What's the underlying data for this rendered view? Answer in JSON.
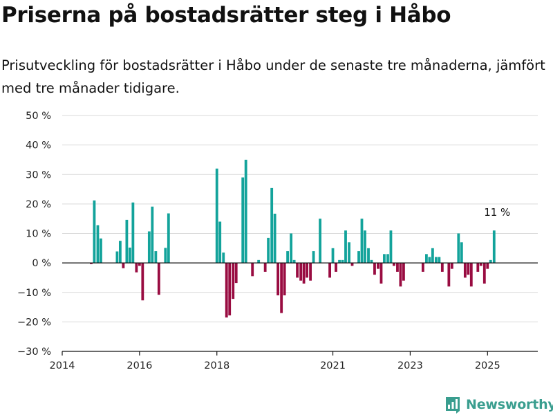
{
  "header": {
    "title": "Priserna på bostadsrätter steg i Håbo",
    "subtitle": "Prisutveckling för bostadsrätter i Håbo under de senaste tre månaderna, jämfört med tre månader tidigare."
  },
  "brand": {
    "name": "Newsworthy",
    "icon": "bar-chart-logo-icon",
    "color": "#3a9e8f"
  },
  "colors": {
    "positive": "#13a39b",
    "negative": "#990c41",
    "grid": "#d9d9d9",
    "axis": "#111111"
  },
  "chart_data": {
    "type": "bar",
    "title": "",
    "xlabel": "",
    "ylabel": "",
    "ylim": [
      -30,
      50
    ],
    "yticks": [
      -30,
      -20,
      -10,
      0,
      10,
      20,
      30,
      40,
      50
    ],
    "ytick_labels": [
      "−30 %",
      "−20 %",
      "−10 %",
      "0 %",
      "10 %",
      "20 %",
      "30 %",
      "40 %",
      "50 %"
    ],
    "xlim": [
      2014.0,
      2026.3
    ],
    "xticks": [
      2014,
      2016,
      2018,
      2021,
      2023,
      2025
    ],
    "xtick_labels": [
      "2014",
      "2016",
      "2018",
      "2021",
      "2023",
      "2025"
    ],
    "grid": "horizontal",
    "annotation": {
      "text": "11 %",
      "x": 2025.25,
      "y": 11
    },
    "series": [
      {
        "values": [
          {
            "x": 2014.75,
            "y": -0.4
          },
          {
            "x": 2014.83,
            "y": 21.2
          },
          {
            "x": 2014.92,
            "y": 12.8
          },
          {
            "x": 2015.0,
            "y": 8.3
          },
          {
            "x": 2015.42,
            "y": 3.9
          },
          {
            "x": 2015.5,
            "y": 7.5
          },
          {
            "x": 2015.58,
            "y": -1.8
          },
          {
            "x": 2015.67,
            "y": 14.6
          },
          {
            "x": 2015.75,
            "y": 5.2
          },
          {
            "x": 2015.83,
            "y": 20.5
          },
          {
            "x": 2015.92,
            "y": -3.2
          },
          {
            "x": 2016.0,
            "y": -1.0
          },
          {
            "x": 2016.08,
            "y": -12.7
          },
          {
            "x": 2016.25,
            "y": 10.7
          },
          {
            "x": 2016.33,
            "y": 19.1
          },
          {
            "x": 2016.42,
            "y": 4.0
          },
          {
            "x": 2016.5,
            "y": -10.8
          },
          {
            "x": 2016.67,
            "y": 5.1
          },
          {
            "x": 2016.75,
            "y": 16.8
          },
          {
            "x": 2018.0,
            "y": 32.0
          },
          {
            "x": 2018.08,
            "y": 14.0
          },
          {
            "x": 2018.17,
            "y": 3.5
          },
          {
            "x": 2018.25,
            "y": -18.5
          },
          {
            "x": 2018.33,
            "y": -17.8
          },
          {
            "x": 2018.42,
            "y": -12.2
          },
          {
            "x": 2018.5,
            "y": -6.8
          },
          {
            "x": 2018.67,
            "y": 29.0
          },
          {
            "x": 2018.75,
            "y": 35.0
          },
          {
            "x": 2018.92,
            "y": -4.5
          },
          {
            "x": 2019.08,
            "y": 1.0
          },
          {
            "x": 2019.25,
            "y": -3.0
          },
          {
            "x": 2019.33,
            "y": 8.5
          },
          {
            "x": 2019.42,
            "y": 25.4
          },
          {
            "x": 2019.5,
            "y": 16.7
          },
          {
            "x": 2019.58,
            "y": -11.0
          },
          {
            "x": 2019.67,
            "y": -17.0
          },
          {
            "x": 2019.75,
            "y": -11.0
          },
          {
            "x": 2019.83,
            "y": 4.0
          },
          {
            "x": 2019.92,
            "y": 10.0
          },
          {
            "x": 2020.0,
            "y": 1.0
          },
          {
            "x": 2020.08,
            "y": -5.0
          },
          {
            "x": 2020.17,
            "y": -6.0
          },
          {
            "x": 2020.25,
            "y": -7.0
          },
          {
            "x": 2020.33,
            "y": -5.0
          },
          {
            "x": 2020.42,
            "y": -6.0
          },
          {
            "x": 2020.5,
            "y": 4.0
          },
          {
            "x": 2020.67,
            "y": 15.0
          },
          {
            "x": 2020.92,
            "y": -5.0
          },
          {
            "x": 2021.0,
            "y": 5.0
          },
          {
            "x": 2021.08,
            "y": -3.0
          },
          {
            "x": 2021.17,
            "y": 1.0
          },
          {
            "x": 2021.25,
            "y": 1.0
          },
          {
            "x": 2021.33,
            "y": 11.0
          },
          {
            "x": 2021.42,
            "y": 7.0
          },
          {
            "x": 2021.5,
            "y": -1.0
          },
          {
            "x": 2021.67,
            "y": 4.0
          },
          {
            "x": 2021.75,
            "y": 15.0
          },
          {
            "x": 2021.83,
            "y": 11.0
          },
          {
            "x": 2021.92,
            "y": 5.0
          },
          {
            "x": 2022.0,
            "y": 1.0
          },
          {
            "x": 2022.08,
            "y": -4.0
          },
          {
            "x": 2022.17,
            "y": -2.0
          },
          {
            "x": 2022.25,
            "y": -7.0
          },
          {
            "x": 2022.33,
            "y": 3.0
          },
          {
            "x": 2022.42,
            "y": 3.0
          },
          {
            "x": 2022.5,
            "y": 11.0
          },
          {
            "x": 2022.58,
            "y": -1.0
          },
          {
            "x": 2022.67,
            "y": -3.0
          },
          {
            "x": 2022.75,
            "y": -8.0
          },
          {
            "x": 2022.83,
            "y": -6.0
          },
          {
            "x": 2023.33,
            "y": -3.0
          },
          {
            "x": 2023.42,
            "y": 3.0
          },
          {
            "x": 2023.5,
            "y": 2.0
          },
          {
            "x": 2023.58,
            "y": 5.0
          },
          {
            "x": 2023.67,
            "y": 2.0
          },
          {
            "x": 2023.75,
            "y": 2.0
          },
          {
            "x": 2023.83,
            "y": -3.0
          },
          {
            "x": 2024.0,
            "y": -8.0
          },
          {
            "x": 2024.08,
            "y": -2.0
          },
          {
            "x": 2024.25,
            "y": 10.0
          },
          {
            "x": 2024.33,
            "y": 7.0
          },
          {
            "x": 2024.42,
            "y": -5.0
          },
          {
            "x": 2024.5,
            "y": -4.0
          },
          {
            "x": 2024.58,
            "y": -8.0
          },
          {
            "x": 2024.75,
            "y": -3.0
          },
          {
            "x": 2024.83,
            "y": -1.0
          },
          {
            "x": 2024.92,
            "y": -7.0
          },
          {
            "x": 2025.0,
            "y": -2.0
          },
          {
            "x": 2025.08,
            "y": 1.0
          },
          {
            "x": 2025.17,
            "y": 11.0
          }
        ]
      }
    ]
  }
}
